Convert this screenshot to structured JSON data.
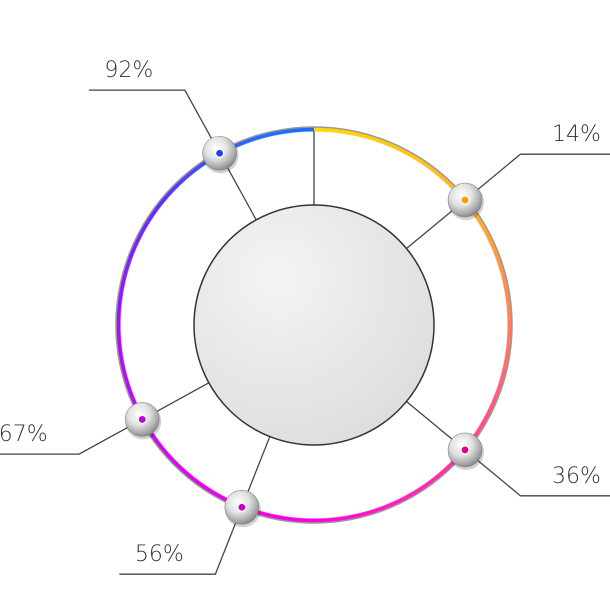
{
  "chart_data": {
    "type": "radial-markers",
    "values": [
      14,
      36,
      56,
      67,
      92
    ],
    "value_labels": [
      "14%",
      "36%",
      "56%",
      "67%",
      "92%"
    ],
    "colors": [
      "#f0a000",
      "#e0008a",
      "#c800c8",
      "#c000d8",
      "#2040ff"
    ]
  }
}
